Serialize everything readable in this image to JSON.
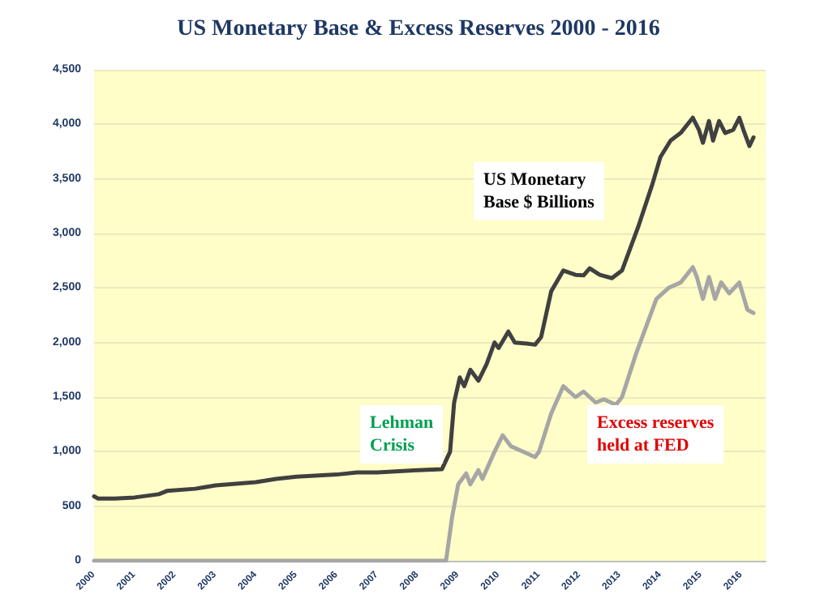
{
  "chart_data": {
    "type": "line",
    "title": "US Monetary Base & Excess Reserves 2000 - 2016",
    "series": [
      {
        "name": "US Monetary Base $ Billions",
        "color": "#404040",
        "x": [
          2000,
          2000.1,
          2000.5,
          2001,
          2001.6,
          2001.8,
          2002.5,
          2003,
          2004,
          2004.5,
          2005,
          2006,
          2006.5,
          2007,
          2008,
          2008.6,
          2008.8,
          2008.9,
          2009.04,
          2009.15,
          2009.3,
          2009.5,
          2009.7,
          2009.9,
          2010.0,
          2010.24,
          2010.4,
          2010.7,
          2010.9,
          2011.05,
          2011.3,
          2011.6,
          2011.9,
          2012.1,
          2012.25,
          2012.5,
          2012.8,
          2013.05,
          2013.45,
          2013.8,
          2014.0,
          2014.25,
          2014.5,
          2014.8,
          2014.95,
          2015.05,
          2015.2,
          2015.3,
          2015.45,
          2015.6,
          2015.8,
          2015.95,
          2016.05,
          2016.2,
          2016.3
        ],
        "values": [
          590,
          570,
          570,
          580,
          610,
          640,
          660,
          690,
          720,
          750,
          770,
          790,
          810,
          810,
          830,
          840,
          1000,
          1450,
          1680,
          1600,
          1750,
          1650,
          1800,
          2000,
          1950,
          2100,
          2000,
          1990,
          1980,
          2050,
          2470,
          2660,
          2620,
          2615,
          2680,
          2620,
          2590,
          2660,
          3060,
          3450,
          3700,
          3850,
          3920,
          4060,
          3950,
          3830,
          4030,
          3850,
          4030,
          3920,
          3950,
          4060,
          3950,
          3800,
          3880
        ]
      },
      {
        "name": "Excess reserves held at FED",
        "color": "#a6a6a6",
        "x": [
          2000,
          2008.7,
          2008.85,
          2009.0,
          2009.2,
          2009.3,
          2009.5,
          2009.6,
          2009.9,
          2010.1,
          2010.3,
          2010.6,
          2010.9,
          2011.0,
          2011.3,
          2011.6,
          2011.9,
          2012.1,
          2012.4,
          2012.6,
          2012.9,
          2013.05,
          2013.4,
          2013.9,
          2014.2,
          2014.5,
          2014.8,
          2014.9,
          2015.05,
          2015.2,
          2015.35,
          2015.5,
          2015.7,
          2015.95,
          2016.15,
          2016.3
        ],
        "values": [
          0,
          0,
          400,
          700,
          800,
          700,
          830,
          750,
          1000,
          1150,
          1050,
          1000,
          950,
          1000,
          1350,
          1600,
          1500,
          1550,
          1450,
          1480,
          1430,
          1500,
          1900,
          2400,
          2500,
          2550,
          2690,
          2600,
          2400,
          2600,
          2400,
          2550,
          2450,
          2550,
          2300,
          2270
        ]
      }
    ],
    "annotations": [
      "Lehman Crisis"
    ],
    "xlim": [
      2000,
      2016.6
    ],
    "xticks": [
      2000,
      2001,
      2002,
      2003,
      2004,
      2005,
      2006,
      2007,
      2008,
      2009,
      2010,
      2011,
      2012,
      2013,
      2014,
      2015,
      2016
    ],
    "ylim": [
      0,
      4500
    ],
    "yticks": [
      0,
      {
        "value": 500,
        "label": "500"
      },
      {
        "value": 1000,
        "label": "1,000"
      },
      {
        "value": 1500,
        "label": "1,500"
      },
      {
        "value": 2000,
        "label": "2,000"
      },
      {
        "value": 2500,
        "label": "2,500"
      },
      {
        "value": 3000,
        "label": "3,000"
      },
      {
        "value": 3500,
        "label": "3,500"
      },
      {
        "value": 4000,
        "label": "4,000"
      },
      {
        "value": 4500,
        "label": "4,500"
      }
    ],
    "grid": "y",
    "marker": "none",
    "line_style": "solid",
    "legend": false
  }
}
